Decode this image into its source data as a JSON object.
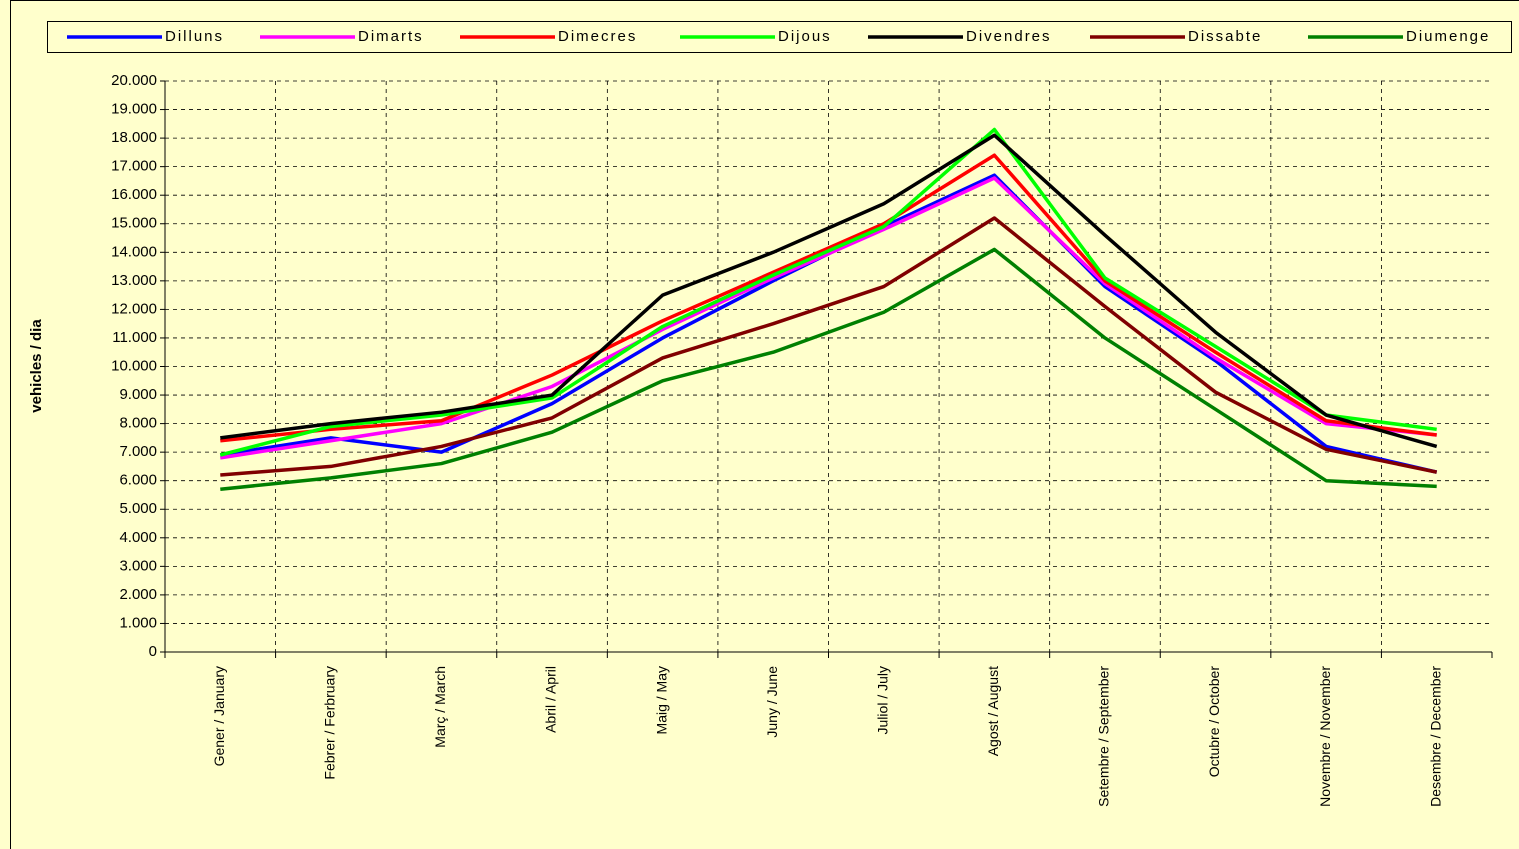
{
  "chart_data": {
    "type": "line",
    "y_label": "vehicles / dia",
    "categories": [
      "Gener / January",
      "Febrer / Ferbruary",
      "Març / March",
      "Abril / April",
      "Maig / May",
      "Juny / June",
      "Juliol / July",
      "Agost / August",
      "Setembre / September",
      "Octubre / October",
      "Novembre / November",
      "Desembre / December"
    ],
    "series": [
      {
        "name": "Dilluns",
        "color": "#0000ff",
        "values": [
          6900,
          7500,
          7000,
          8700,
          11000,
          13000,
          14900,
          16700,
          12800,
          10200,
          7200,
          6300
        ]
      },
      {
        "name": "Dimarts",
        "color": "#ff00ff",
        "values": [
          6800,
          7400,
          8000,
          9300,
          11300,
          13100,
          14800,
          16600,
          12900,
          10300,
          8000,
          7600
        ]
      },
      {
        "name": "Dimecres",
        "color": "#ff0000",
        "values": [
          7400,
          7800,
          8100,
          9700,
          11600,
          13300,
          15000,
          17400,
          13000,
          10500,
          8100,
          7600
        ]
      },
      {
        "name": "Dijous",
        "color": "#00ff00",
        "values": [
          6900,
          7900,
          8300,
          8900,
          11400,
          13200,
          14900,
          18300,
          13100,
          10700,
          8300,
          7800
        ]
      },
      {
        "name": "Divendres",
        "color": "#000000",
        "values": [
          7500,
          8000,
          8400,
          9000,
          12500,
          14000,
          15700,
          18100,
          14600,
          11200,
          8300,
          7200
        ]
      },
      {
        "name": "Dissabte",
        "color": "#800000",
        "values": [
          6200,
          6500,
          7200,
          8200,
          10300,
          11500,
          12800,
          15200,
          12100,
          9100,
          7100,
          6300
        ]
      },
      {
        "name": "Diumenge",
        "color": "#008000",
        "values": [
          5700,
          6100,
          6600,
          7700,
          9500,
          10500,
          11900,
          14100,
          11000,
          8500,
          6000,
          5800
        ]
      }
    ],
    "ylim": [
      0,
      20000
    ],
    "yticks": [
      0,
      {
        "value": 1000,
        "label": "1.000"
      },
      {
        "value": 2000,
        "label": "2.000"
      },
      {
        "value": 3000,
        "label": "3.000"
      },
      {
        "value": 4000,
        "label": "4.000"
      },
      {
        "value": 5000,
        "label": "5.000"
      },
      {
        "value": 6000,
        "label": "6.000"
      },
      {
        "value": 7000,
        "label": "7.000"
      },
      {
        "value": 8000,
        "label": "8.000"
      },
      {
        "value": 9000,
        "label": "9.000"
      },
      {
        "value": 10000,
        "label": "10.000"
      },
      {
        "value": 11000,
        "label": "11.000"
      },
      {
        "value": 12000,
        "label": "12.000"
      },
      {
        "value": 13000,
        "label": "13.000"
      },
      {
        "value": 14000,
        "label": "14.000"
      },
      {
        "value": 15000,
        "label": "15.000"
      },
      {
        "value": 16000,
        "label": "16.000"
      },
      {
        "value": 17000,
        "label": "17.000"
      },
      {
        "value": 18000,
        "label": "18.000"
      },
      {
        "value": 19000,
        "label": "19.000"
      },
      {
        "value": 20000,
        "label": "20.000"
      }
    ],
    "grid": true,
    "legend": "top"
  }
}
